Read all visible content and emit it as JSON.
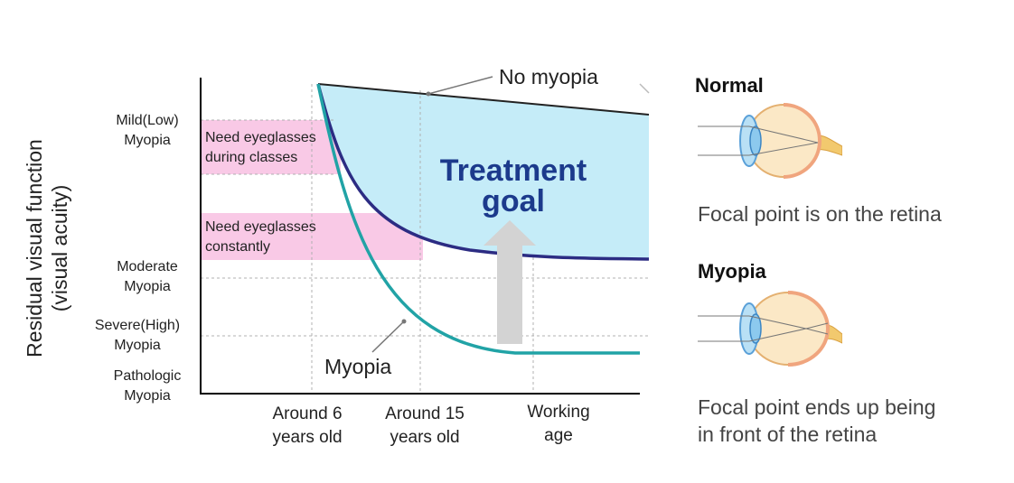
{
  "y_axis": {
    "title_line1": "Residual visual function",
    "title_line2": "(visual acuity)",
    "levels": [
      {
        "line1": "Mild(Low)",
        "line2": "Myopia"
      },
      {
        "line1": "Moderate",
        "line2": "Myopia"
      },
      {
        "line1": "Severe(High)",
        "line2": "Myopia"
      },
      {
        "line1": "Pathologic",
        "line2": "Myopia"
      }
    ]
  },
  "x_axis": {
    "ticks": [
      {
        "line1": "Around 6",
        "line2": "years old"
      },
      {
        "line1": "Around 15",
        "line2": "years old"
      },
      {
        "line1": "Working",
        "line2": "age"
      }
    ]
  },
  "bands": [
    {
      "line1": "Need eyeglasses",
      "line2": "during classes"
    },
    {
      "line1": "Need eyeglasses",
      "line2": "constantly"
    }
  ],
  "curves": {
    "no_myopia_label": "No myopia",
    "myopia_label": "Myopia"
  },
  "treatment_goal": "Treatment\ngoal",
  "colors": {
    "fill_region": "#c5ecf8",
    "band": "#f9c9e6",
    "top_curve": "#2c2c83",
    "myopia_curve": "#21a3a6",
    "goal_text": "#1c3a8c",
    "arrow": "#d3d3d3"
  },
  "eyes": {
    "normal": {
      "title": "Normal",
      "caption": "Focal point is on the retina",
      "icon": "eye-diagram-normal"
    },
    "myopia": {
      "title": "Myopia",
      "caption_line1": "Focal point ends up being",
      "caption_line2": "in front of the retina",
      "icon": "eye-diagram-myopia"
    }
  }
}
